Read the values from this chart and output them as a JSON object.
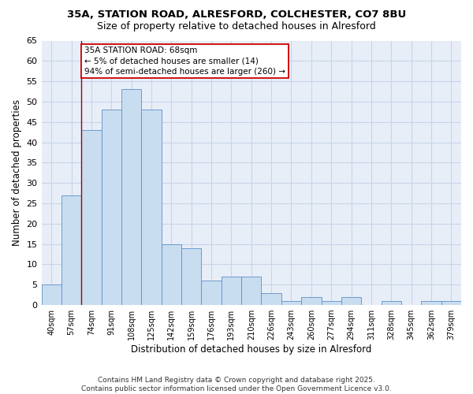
{
  "title1": "35A, STATION ROAD, ALRESFORD, COLCHESTER, CO7 8BU",
  "title2": "Size of property relative to detached houses in Alresford",
  "xlabel": "Distribution of detached houses by size in Alresford",
  "ylabel": "Number of detached properties",
  "categories": [
    "40sqm",
    "57sqm",
    "74sqm",
    "91sqm",
    "108sqm",
    "125sqm",
    "142sqm",
    "159sqm",
    "176sqm",
    "193sqm",
    "210sqm",
    "226sqm",
    "243sqm",
    "260sqm",
    "277sqm",
    "294sqm",
    "311sqm",
    "328sqm",
    "345sqm",
    "362sqm",
    "379sqm"
  ],
  "values": [
    5,
    27,
    43,
    48,
    53,
    48,
    15,
    14,
    6,
    7,
    7,
    3,
    1,
    2,
    1,
    2,
    0,
    1,
    0,
    1,
    1
  ],
  "bar_color": "#c9ddf0",
  "bar_edge_color": "#5b8fc9",
  "annotation_text": "35A STATION ROAD: 68sqm\n← 5% of detached houses are smaller (14)\n94% of semi-detached houses are larger (260) →",
  "annotation_box_color": "white",
  "annotation_box_edge_color": "#cc0000",
  "vline_color": "#aa0000",
  "vline_x": 1.5,
  "ylim": [
    0,
    65
  ],
  "yticks": [
    0,
    5,
    10,
    15,
    20,
    25,
    30,
    35,
    40,
    45,
    50,
    55,
    60,
    65
  ],
  "grid_color": "#c8d4e8",
  "bg_color": "#e8eef8",
  "footer": "Contains HM Land Registry data © Crown copyright and database right 2025.\nContains public sector information licensed under the Open Government Licence v3.0."
}
